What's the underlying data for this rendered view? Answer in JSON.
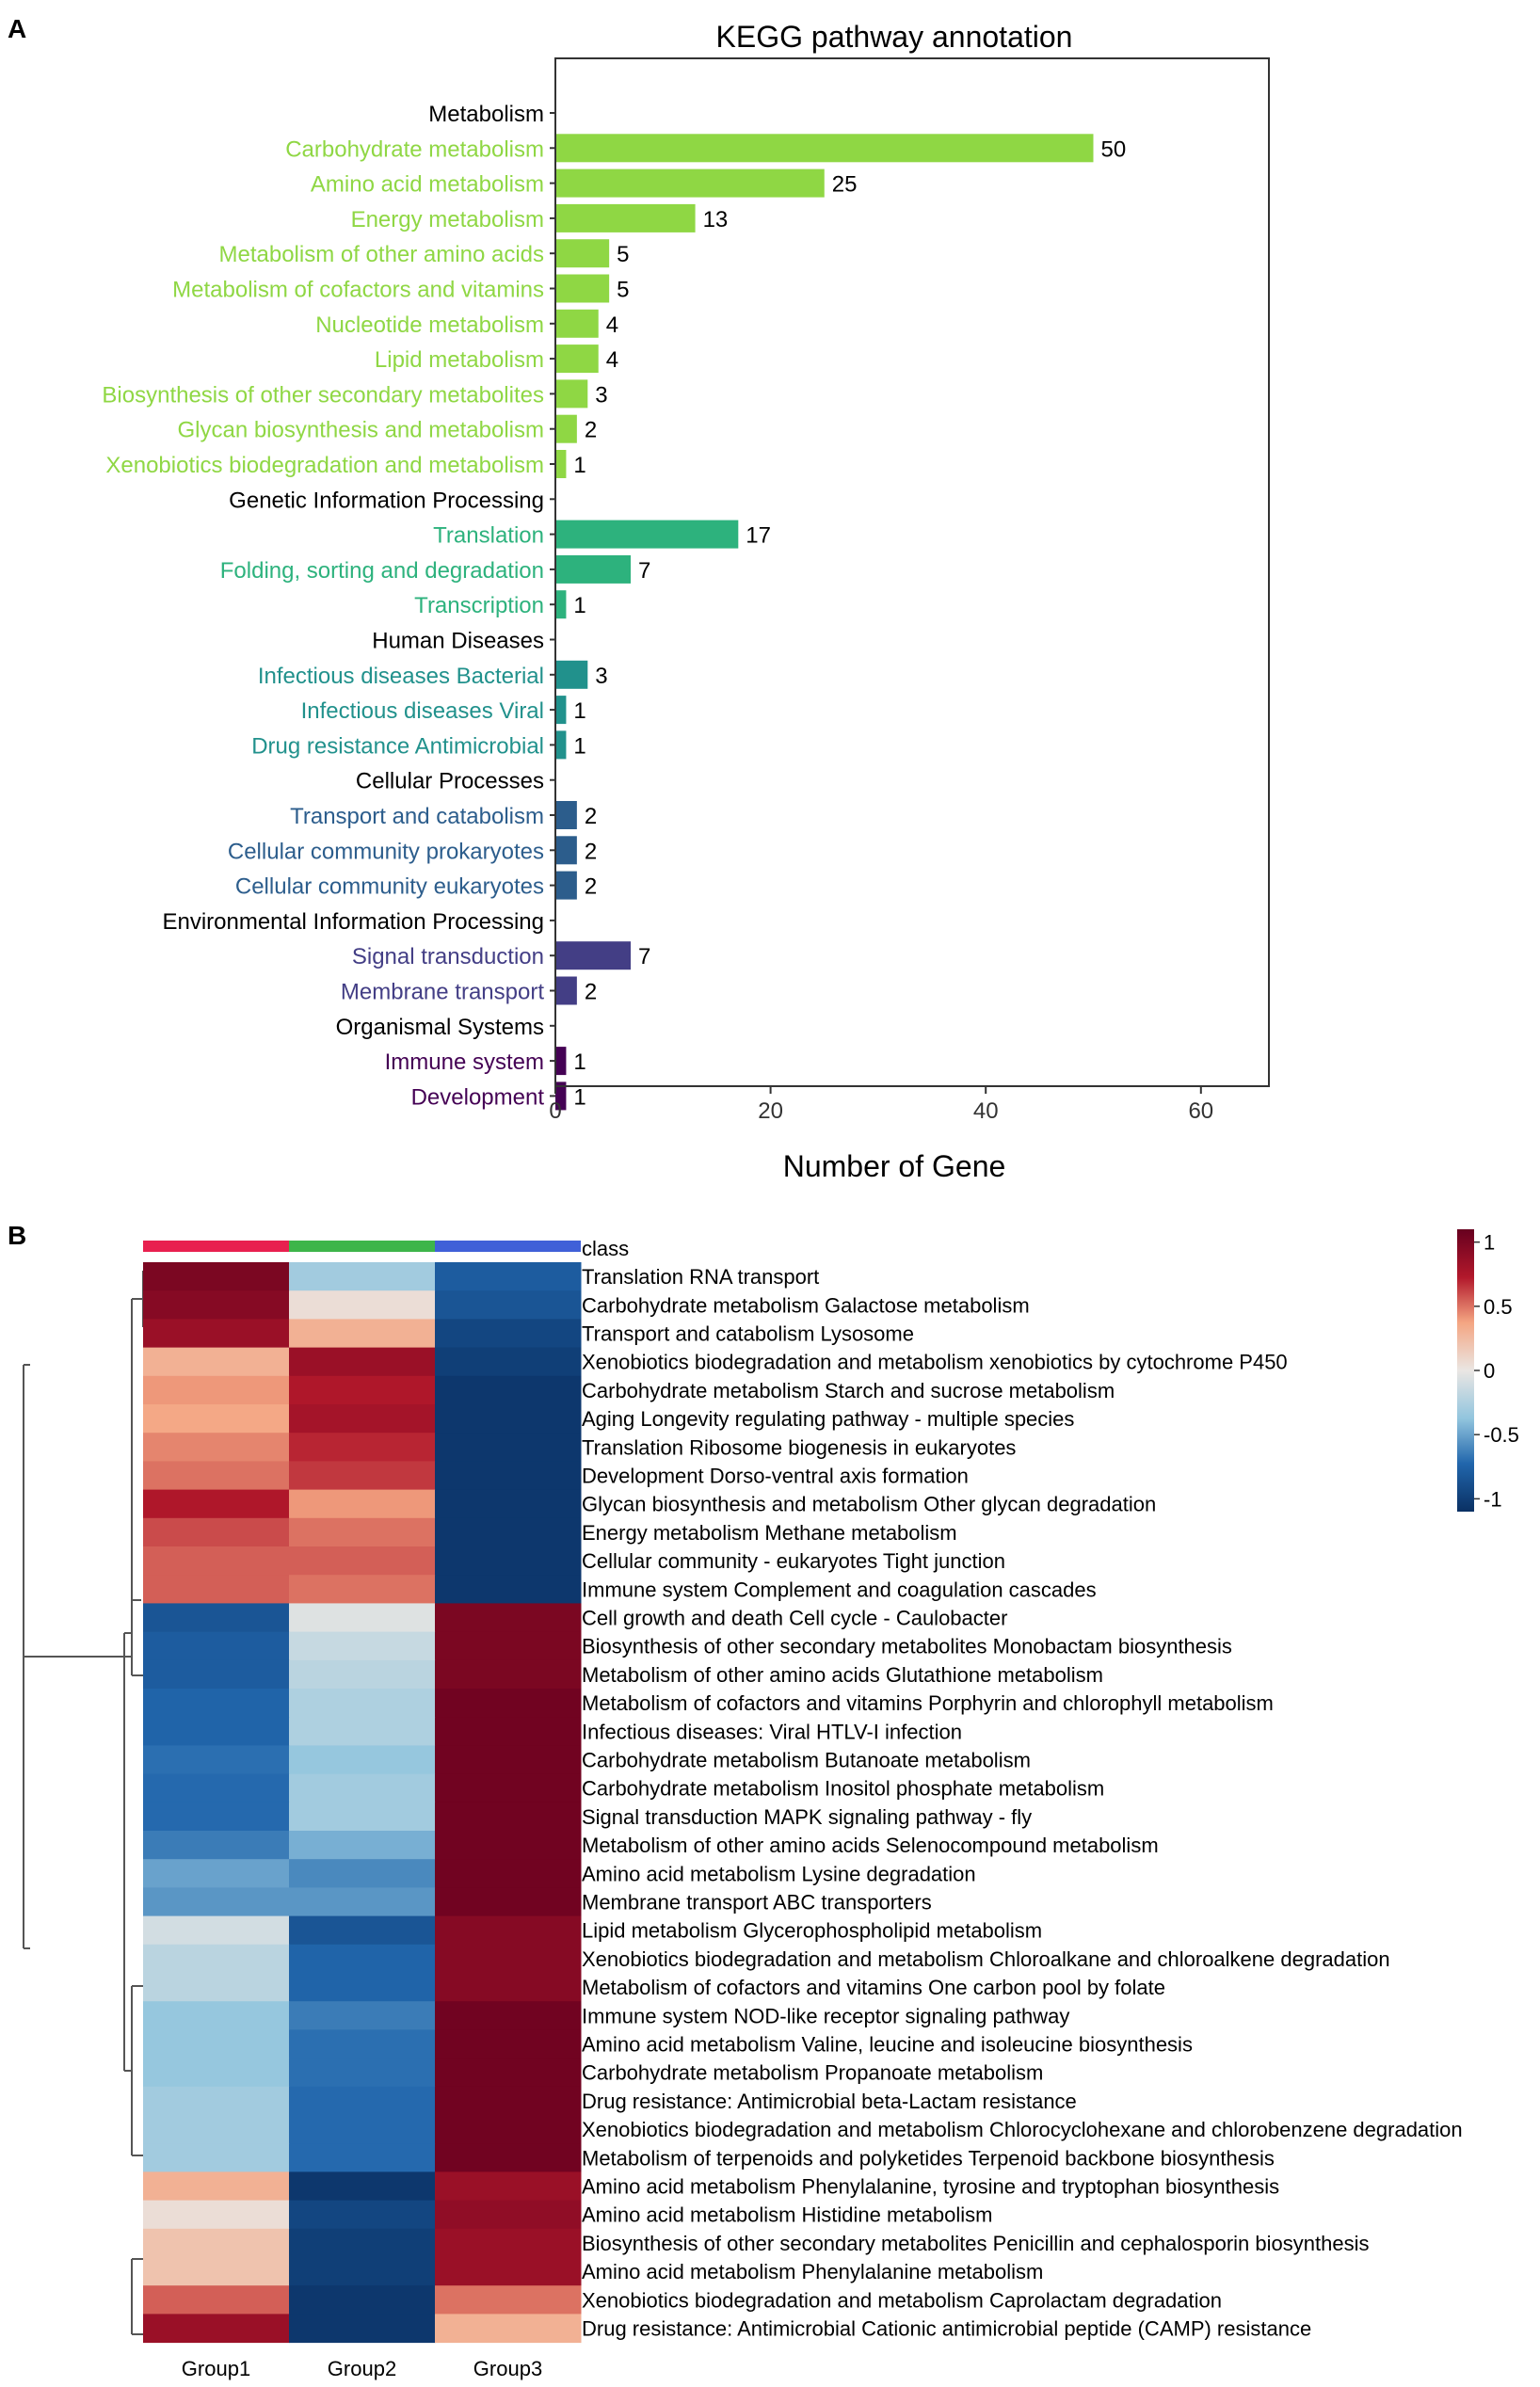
{
  "panel_a": {
    "panel_label": "A",
    "chart_data": {
      "type": "bar",
      "orientation": "horizontal",
      "title": "KEGG pathway annotation",
      "xlabel": "Number of Gene",
      "ylabel": "",
      "xlim": [
        0,
        66
      ],
      "xticks": [
        0,
        20,
        40,
        60
      ],
      "grid": false,
      "legend": "none",
      "rows": [
        {
          "label": "Metabolism",
          "value": null,
          "group": "metabolism",
          "header": true
        },
        {
          "label": "Carbohydrate metabolism",
          "value": 50,
          "group": "metabolism"
        },
        {
          "label": "Amino acid metabolism",
          "value": 25,
          "group": "metabolism"
        },
        {
          "label": "Energy metabolism",
          "value": 13,
          "group": "metabolism"
        },
        {
          "label": "Metabolism of other amino acids",
          "value": 5,
          "group": "metabolism"
        },
        {
          "label": "Metabolism of cofactors and vitamins",
          "value": 5,
          "group": "metabolism"
        },
        {
          "label": "Nucleotide metabolism",
          "value": 4,
          "group": "metabolism"
        },
        {
          "label": "Lipid metabolism",
          "value": 4,
          "group": "metabolism"
        },
        {
          "label": "Biosynthesis of other secondary metabolites",
          "value": 3,
          "group": "metabolism"
        },
        {
          "label": "Glycan biosynthesis and metabolism",
          "value": 2,
          "group": "metabolism"
        },
        {
          "label": "Xenobiotics biodegradation and metabolism",
          "value": 1,
          "group": "metabolism"
        },
        {
          "label": "Genetic Information Processing",
          "value": null,
          "group": "genetic",
          "header": true
        },
        {
          "label": "Translation",
          "value": 17,
          "group": "genetic"
        },
        {
          "label": "Folding, sorting and degradation",
          "value": 7,
          "group": "genetic"
        },
        {
          "label": "Transcription",
          "value": 1,
          "group": "genetic"
        },
        {
          "label": "Human Diseases",
          "value": null,
          "group": "human",
          "header": true
        },
        {
          "label": "Infectious diseases Bacterial",
          "value": 3,
          "group": "human"
        },
        {
          "label": "Infectious diseases Viral",
          "value": 1,
          "group": "human"
        },
        {
          "label": "Drug resistance Antimicrobial",
          "value": 1,
          "group": "human"
        },
        {
          "label": "Cellular Processes",
          "value": null,
          "group": "cellular",
          "header": true
        },
        {
          "label": "Transport and catabolism",
          "value": 2,
          "group": "cellular"
        },
        {
          "label": "Cellular community prokaryotes",
          "value": 2,
          "group": "cellular"
        },
        {
          "label": "Cellular community eukaryotes",
          "value": 2,
          "group": "cellular"
        },
        {
          "label": "Environmental Information Processing",
          "value": null,
          "group": "environmental",
          "header": true
        },
        {
          "label": "Signal transduction",
          "value": 7,
          "group": "environmental"
        },
        {
          "label": "Membrane transport",
          "value": 2,
          "group": "environmental"
        },
        {
          "label": "Organismal Systems",
          "value": null,
          "group": "organismal",
          "header": true
        },
        {
          "label": "Immune system",
          "value": 1,
          "group": "organismal"
        },
        {
          "label": "Development",
          "value": 1,
          "group": "organismal"
        }
      ],
      "colors": {
        "metabolism": "#8fd744",
        "genetic": "#2db27d",
        "human": "#21918c",
        "cellular": "#2c5d8c",
        "environmental": "#433e85",
        "organismal": "#440154",
        "header_text": "#000000"
      }
    }
  },
  "panel_b": {
    "panel_label": "B",
    "chart_data": {
      "type": "heatmap",
      "title": "",
      "columns": [
        "Group1",
        "Group2",
        "Group3"
      ],
      "class_label": "class",
      "class_colors": [
        "#e8204f",
        "#3db54a",
        "#4060d8"
      ],
      "color_scale": {
        "min": -1.1,
        "max": 1.1,
        "ticks": [
          1,
          0.5,
          0,
          -0.5,
          -1
        ],
        "tick_labels": [
          "1",
          "0.5",
          "0",
          "-0.5",
          "-1"
        ],
        "stops": [
          "#0a3063",
          "#2166ac",
          "#92c5de",
          "#eae6e3",
          "#f4a582",
          "#b2182b",
          "#67001f"
        ]
      },
      "rows": [
        {
          "label": "Translation  RNA transport",
          "values": [
            1.0,
            -0.3,
            -0.8
          ]
        },
        {
          "label": "Carbohydrate metabolism  Galactose metabolism",
          "values": [
            0.95,
            0.05,
            -0.85
          ]
        },
        {
          "label": "Transport and catabolism  Lysosome",
          "values": [
            0.85,
            0.3,
            -0.95
          ]
        },
        {
          "label": "Xenobiotics biodegradation and metabolism xenobiotics by cytochrome P450",
          "values": [
            0.3,
            0.85,
            -1.0
          ]
        },
        {
          "label": "Carbohydrate metabolism  Starch and sucrose metabolism",
          "values": [
            0.4,
            0.75,
            -1.05
          ]
        },
        {
          "label": "Aging  Longevity regulating pathway - multiple species",
          "values": [
            0.35,
            0.8,
            -1.05
          ]
        },
        {
          "label": "Translation  Ribosome biogenesis in eukaryotes",
          "values": [
            0.45,
            0.7,
            -1.05
          ]
        },
        {
          "label": "Development  Dorso-ventral axis formation",
          "values": [
            0.5,
            0.65,
            -1.05
          ]
        },
        {
          "label": "Glycan biosynthesis and metabolism  Other glycan degradation",
          "values": [
            0.75,
            0.4,
            -1.05
          ]
        },
        {
          "label": "Energy metabolism  Methane metabolism",
          "values": [
            0.6,
            0.5,
            -1.05
          ]
        },
        {
          "label": "Cellular community - eukaryotes  Tight junction",
          "values": [
            0.55,
            0.55,
            -1.05
          ]
        },
        {
          "label": "Immune system  Complement and coagulation cascades",
          "values": [
            0.55,
            0.5,
            -1.05
          ]
        },
        {
          "label": "Cell growth and death  Cell cycle - Caulobacter",
          "values": [
            -0.85,
            -0.05,
            1.0
          ]
        },
        {
          "label": "Biosynthesis of other secondary metabolites  Monobactam biosynthesis",
          "values": [
            -0.8,
            -0.15,
            1.0
          ]
        },
        {
          "label": "Metabolism of other amino acids  Glutathione metabolism",
          "values": [
            -0.8,
            -0.2,
            1.0
          ]
        },
        {
          "label": "Metabolism of cofactors and vitamins  Porphyrin and chlorophyll metabolism",
          "values": [
            -0.75,
            -0.25,
            1.05
          ]
        },
        {
          "label": "Infectious diseases: Viral  HTLV-I infection",
          "values": [
            -0.75,
            -0.25,
            1.05
          ]
        },
        {
          "label": "Carbohydrate metabolism  Butanoate metabolism",
          "values": [
            -0.7,
            -0.35,
            1.05
          ]
        },
        {
          "label": "Carbohydrate metabolism  Inositol phosphate metabolism",
          "values": [
            -0.72,
            -0.3,
            1.05
          ]
        },
        {
          "label": "Signal transduction  MAPK signaling pathway - fly",
          "values": [
            -0.72,
            -0.3,
            1.05
          ]
        },
        {
          "label": "Metabolism of other amino acids  Selenocompound metabolism",
          "values": [
            -0.65,
            -0.45,
            1.05
          ]
        },
        {
          "label": "Amino acid metabolism  Lysine degradation",
          "values": [
            -0.5,
            -0.6,
            1.05
          ]
        },
        {
          "label": "Membrane transport  ABC transporters",
          "values": [
            -0.55,
            -0.55,
            1.05
          ]
        },
        {
          "label": "Lipid metabolism  Glycerophospholipid metabolism",
          "values": [
            -0.1,
            -0.85,
            0.95
          ]
        },
        {
          "label": "Xenobiotics biodegradation and metabolism  Chloroalkane and chloroalkene degradation",
          "values": [
            -0.2,
            -0.75,
            0.95
          ]
        },
        {
          "label": "Metabolism of cofactors and vitamins  One carbon pool by folate",
          "values": [
            -0.2,
            -0.75,
            0.95
          ]
        },
        {
          "label": "Immune system  NOD-like receptor signaling pathway",
          "values": [
            -0.35,
            -0.65,
            1.05
          ]
        },
        {
          "label": "Amino acid metabolism  Valine, leucine and isoleucine biosynthesis",
          "values": [
            -0.35,
            -0.7,
            1.05
          ]
        },
        {
          "label": "Carbohydrate metabolism  Propanoate metabolism",
          "values": [
            -0.35,
            -0.7,
            1.05
          ]
        },
        {
          "label": "Drug resistance: Antimicrobial  beta-Lactam resistance",
          "values": [
            -0.3,
            -0.72,
            1.05
          ]
        },
        {
          "label": "Xenobiotics biodegradation and metabolism  Chlorocyclohexane and chlorobenzene degradation",
          "values": [
            -0.3,
            -0.72,
            1.05
          ]
        },
        {
          "label": "Metabolism of terpenoids and polyketides  Terpenoid backbone biosynthesis",
          "values": [
            -0.3,
            -0.72,
            1.05
          ]
        },
        {
          "label": "Amino acid metabolism  Phenylalanine, tyrosine and tryptophan biosynthesis",
          "values": [
            0.3,
            -1.05,
            0.85
          ]
        },
        {
          "label": "Amino acid metabolism  Histidine metabolism",
          "values": [
            0.05,
            -0.95,
            0.9
          ]
        },
        {
          "label": "Biosynthesis of other secondary metabolites  Penicillin and cephalosporin biosynthesis",
          "values": [
            0.2,
            -1.0,
            0.85
          ]
        },
        {
          "label": "Amino acid metabolism  Phenylalanine metabolism",
          "values": [
            0.2,
            -1.0,
            0.85
          ]
        },
        {
          "label": "Xenobiotics biodegradation and metabolism  Caprolactam degradation",
          "values": [
            0.55,
            -1.05,
            0.5
          ]
        },
        {
          "label": "Drug resistance: Antimicrobial  Cationic antimicrobial peptide (CAMP) resistance",
          "values": [
            0.85,
            -1.05,
            0.3
          ]
        }
      ]
    }
  }
}
